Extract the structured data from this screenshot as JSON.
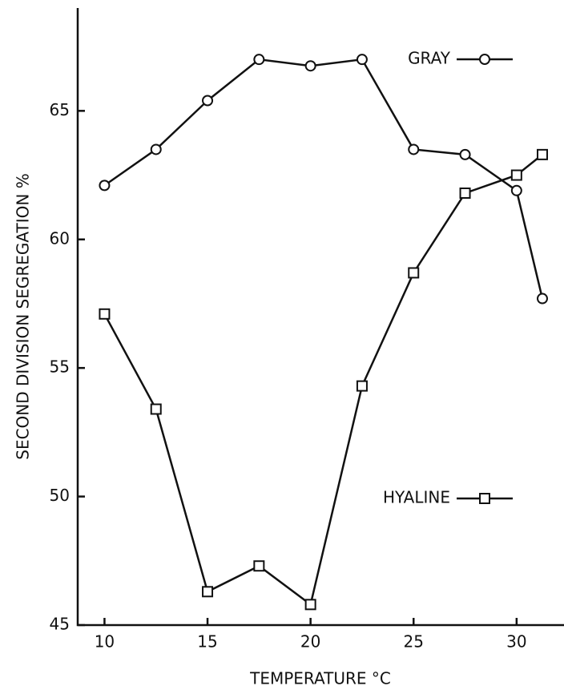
{
  "chart_data": {
    "type": "line",
    "x_label": "TEMPERATURE °C",
    "y_label": "SECOND DIVISION SEGREGATION %",
    "x": [
      10,
      12.5,
      15,
      17.5,
      20,
      22.5,
      25,
      27.5,
      30,
      31.25
    ],
    "series": [
      {
        "name": "GRAY",
        "color": "#111111",
        "marker": "circle",
        "values": [
          62.1,
          63.5,
          65.4,
          67.0,
          66.75,
          67.0,
          63.5,
          63.3,
          61.9,
          57.7
        ]
      },
      {
        "name": "HYALINE",
        "color": "#111111",
        "marker": "square",
        "values": [
          57.1,
          53.4,
          46.3,
          47.3,
          45.8,
          54.3,
          58.7,
          61.8,
          62.5,
          63.3
        ]
      }
    ],
    "xlim": [
      8.7,
      32.3
    ],
    "xticks": [
      10,
      15,
      20,
      25,
      30
    ],
    "ylim": [
      45,
      69
    ],
    "yticks": [
      45,
      50,
      55,
      60,
      65
    ],
    "grid": false
  }
}
